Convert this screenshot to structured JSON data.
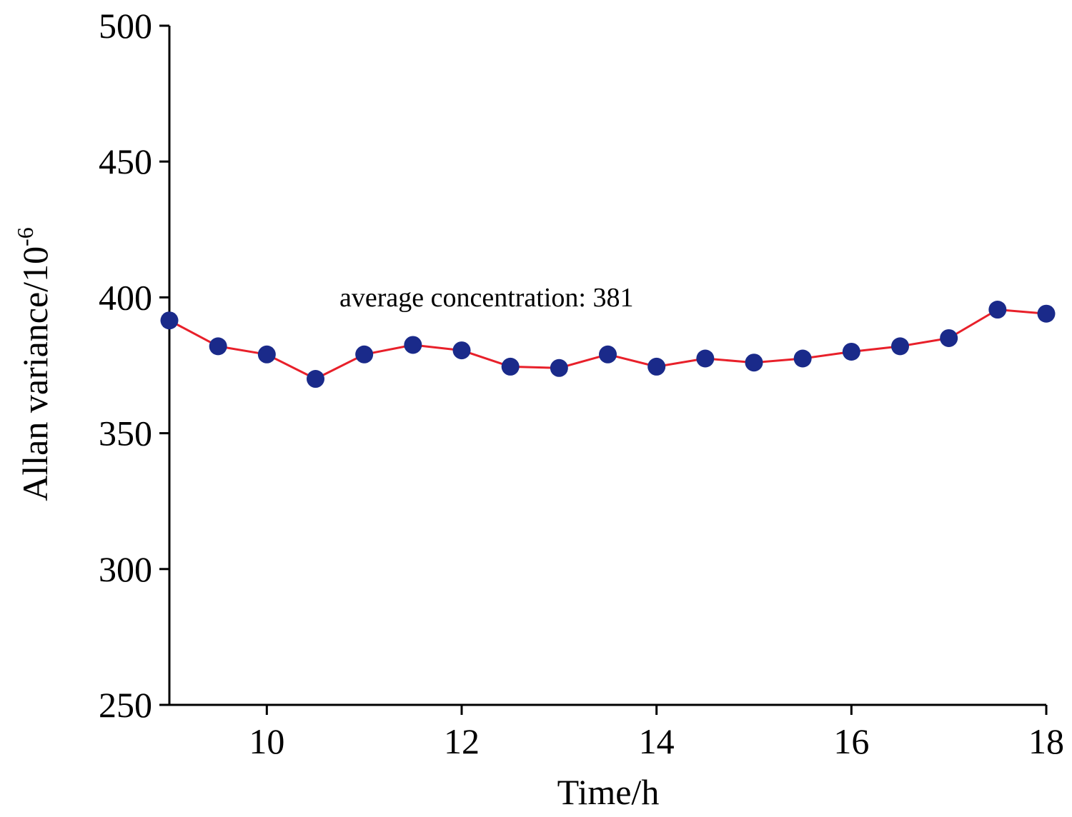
{
  "chart_data": {
    "type": "line",
    "title": "",
    "xlabel": "Time/h",
    "ylabel": "Allan variance/10",
    "ylabel_superscript": "-6",
    "xlim": [
      9,
      18
    ],
    "ylim": [
      250,
      500
    ],
    "xticks": [
      10,
      12,
      14,
      16,
      18
    ],
    "yticks": [
      250,
      300,
      350,
      400,
      450,
      500
    ],
    "grid": false,
    "annotation": "average concentration: 381",
    "line_color": "#e8202a",
    "marker_color": "#1a2a8a",
    "series": [
      {
        "name": "Allan variance",
        "x": [
          9,
          9.5,
          10,
          10.5,
          11,
          11.5,
          12,
          12.5,
          13,
          13.5,
          14,
          14.5,
          15,
          15.5,
          16,
          16.5,
          17,
          17.5,
          18
        ],
        "y": [
          391.5,
          382,
          379,
          370,
          379,
          382.5,
          380.5,
          374.5,
          374,
          379,
          374.5,
          377.5,
          376,
          377.5,
          380,
          382,
          385,
          395.5,
          394
        ]
      }
    ]
  }
}
